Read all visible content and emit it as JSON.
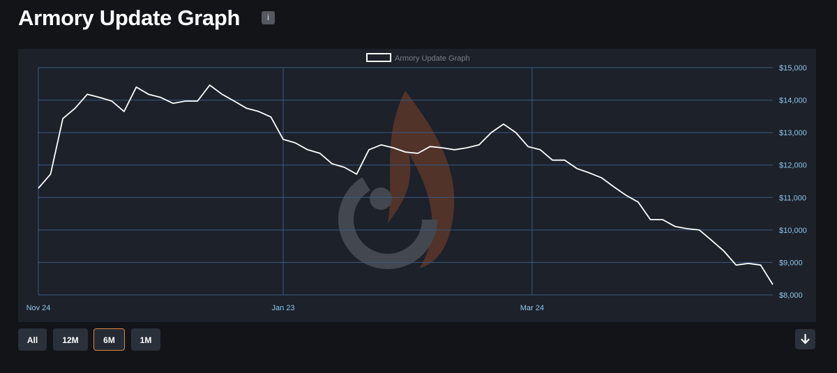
{
  "header": {
    "title": "Armory Update Graph",
    "info": "i"
  },
  "chart_data": {
    "type": "line",
    "series": [
      {
        "name": "Armory Update Graph",
        "color": "#ffffff",
        "values": [
          11285,
          11720,
          13430,
          13750,
          14180,
          14080,
          13970,
          13650,
          14400,
          14180,
          14080,
          13900,
          13970,
          13970,
          14460,
          14180,
          13970,
          13750,
          13650,
          13480,
          12790,
          12680,
          12470,
          12360,
          12040,
          11930,
          11720,
          12470,
          12620,
          12530,
          12400,
          12360,
          12570,
          12530,
          12470,
          12530,
          12620,
          13000,
          13260,
          13000,
          12570,
          12470,
          12150,
          12150,
          11890,
          11760,
          11610,
          11330,
          11070,
          10860,
          10320,
          10320,
          10110,
          10040,
          10000,
          9680,
          9350,
          8920,
          8970,
          8920,
          8320
        ]
      }
    ],
    "x": [
      0,
      3,
      6,
      9,
      12,
      15,
      18,
      21,
      24,
      27,
      30,
      33,
      36,
      39,
      42,
      45,
      48,
      51,
      54,
      57,
      60,
      63,
      66,
      69,
      72,
      75,
      78,
      81,
      84,
      87,
      90,
      93,
      96,
      99,
      102,
      105,
      108,
      111,
      114,
      117,
      120,
      123,
      126,
      129,
      132,
      135,
      138,
      141,
      144,
      147,
      150,
      153,
      156,
      159,
      162,
      165,
      168,
      171,
      174,
      177,
      180
    ],
    "xlim": [
      0,
      180
    ],
    "xticks": [
      {
        "value": 0,
        "label": "Nov 24"
      },
      {
        "value": 60,
        "label": "Jan 23"
      },
      {
        "value": 121,
        "label": "Mar 24"
      }
    ],
    "ylim": [
      8000,
      15000
    ],
    "yticks": [
      {
        "value": 8000,
        "label": "$8,000"
      },
      {
        "value": 9000,
        "label": "$9,000"
      },
      {
        "value": 10000,
        "label": "$10,000"
      },
      {
        "value": 11000,
        "label": "$11,000"
      },
      {
        "value": 12000,
        "label": "$12,000"
      },
      {
        "value": 13000,
        "label": "$13,000"
      },
      {
        "value": 14000,
        "label": "$14,000"
      },
      {
        "value": 15000,
        "label": "$15,000"
      }
    ],
    "grid": true
  },
  "range_buttons": [
    "All",
    "12M",
    "6M",
    "1M"
  ],
  "selected_range": 2
}
